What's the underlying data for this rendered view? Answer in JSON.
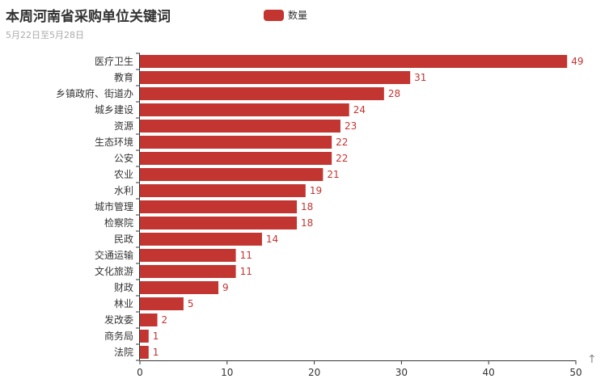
{
  "title": "本周河南省采购单位关键词",
  "subtitle": "5月22日至5月28日",
  "toolbox": {
    "icon": "arrow-up-icon",
    "glyph": "↑"
  },
  "chart_data": {
    "type": "bar",
    "orientation": "horizontal",
    "categories": [
      "医疗卫生",
      "教育",
      "乡镇政府、街道办",
      "城乡建设",
      "资源",
      "生态环境",
      "公安",
      "农业",
      "水利",
      "城市管理",
      "检察院",
      "民政",
      "交通运输",
      "文化旅游",
      "财政",
      "林业",
      "发改委",
      "商务局",
      "法院"
    ],
    "series": [
      {
        "name": "数量",
        "values": [
          49,
          31,
          28,
          24,
          23,
          22,
          22,
          21,
          19,
          18,
          18,
          14,
          11,
          11,
          9,
          5,
          2,
          1,
          1
        ],
        "color": "#c23531"
      }
    ],
    "xlim": [
      0,
      50
    ],
    "xticks": [
      "0",
      "10",
      "20",
      "30",
      "40",
      "50"
    ],
    "grid": false,
    "legend": "top",
    "data_labels": true
  }
}
